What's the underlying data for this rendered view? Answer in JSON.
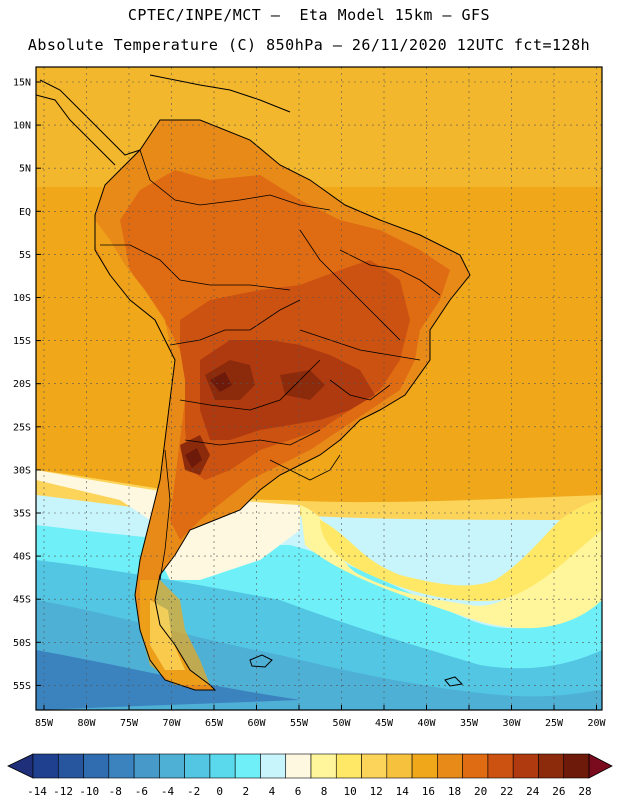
{
  "header": {
    "line1": "CPTEC/INPE/MCT —  Eta Model 15km — GFS",
    "line2": "Absolute Temperature (C) 850hPa — 26/11/2020 12UTC fct=128h"
  },
  "axes": {
    "lat_labels": [
      "15N",
      "10N",
      "5N",
      "EQ",
      "5S",
      "10S",
      "15S",
      "20S",
      "25S",
      "30S",
      "35S",
      "40S",
      "45S",
      "50S",
      "55S"
    ],
    "lon_labels": [
      "85W",
      "80W",
      "75W",
      "70W",
      "65W",
      "60W",
      "55W",
      "50W",
      "45W",
      "40W",
      "35W",
      "30W",
      "25W",
      "20W"
    ]
  },
  "colorbar": {
    "labels": [
      "-14",
      "-12",
      "-10",
      "-8",
      "-6",
      "-4",
      "-2",
      "0",
      "2",
      "4",
      "6",
      "8",
      "10",
      "12",
      "14",
      "16",
      "18",
      "20",
      "22",
      "24",
      "26",
      "28"
    ],
    "colors": [
      "#1f3f8f",
      "#27569f",
      "#2f6cb0",
      "#3b83bf",
      "#4699c9",
      "#4fb0d6",
      "#52c6e3",
      "#5ad8ec",
      "#6ff0f8",
      "#c8f4fb",
      "#fff8e1",
      "#fff59a",
      "#ffe866",
      "#fcd45a",
      "#f6c23e",
      "#f0a81a",
      "#e88a18",
      "#df6b13",
      "#cc5212",
      "#b03a0f",
      "#8c2a0c",
      "#6d1a0a"
    ],
    "low_color": "#1f2f7a",
    "high_color": "#7a0a1e"
  }
}
